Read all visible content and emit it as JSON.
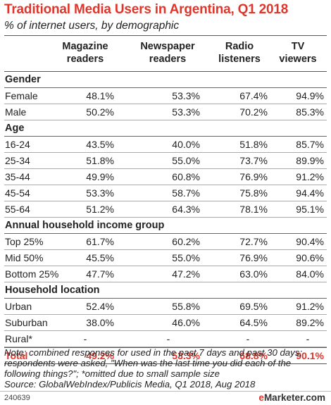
{
  "chart_data": {
    "type": "table",
    "title": "Traditional Media Users in Argentina, Q1 2018",
    "subtitle": "% of internet users, by demographic",
    "columns": [
      "Magazine readers",
      "Newspaper readers",
      "Radio listeners",
      "TV viewers"
    ],
    "sections": [
      {
        "name": "Gender",
        "rows": [
          {
            "label": "Female",
            "values": [
              "48.1%",
              "53.3%",
              "67.4%",
              "94.9%"
            ]
          },
          {
            "label": "Male",
            "values": [
              "50.2%",
              "53.3%",
              "70.2%",
              "85.3%"
            ]
          }
        ]
      },
      {
        "name": "Age",
        "rows": [
          {
            "label": "16-24",
            "values": [
              "43.5%",
              "40.0%",
              "51.8%",
              "85.7%"
            ]
          },
          {
            "label": "25-34",
            "values": [
              "51.8%",
              "55.0%",
              "73.7%",
              "89.9%"
            ]
          },
          {
            "label": "35-44",
            "values": [
              "49.9%",
              "60.8%",
              "76.9%",
              "91.2%"
            ]
          },
          {
            "label": "45-54",
            "values": [
              "53.3%",
              "58.7%",
              "75.8%",
              "94.4%"
            ]
          },
          {
            "label": "55-64",
            "values": [
              "51.2%",
              "64.3%",
              "78.1%",
              "95.1%"
            ]
          }
        ]
      },
      {
        "name": "Annual household income group",
        "rows": [
          {
            "label": "Top 25%",
            "values": [
              "61.7%",
              "60.2%",
              "72.7%",
              "90.4%"
            ]
          },
          {
            "label": "Mid 50%",
            "values": [
              "45.5%",
              "55.0%",
              "76.9%",
              "90.6%"
            ]
          },
          {
            "label": "Bottom 25%",
            "values": [
              "47.7%",
              "47.2%",
              "63.0%",
              "84.0%"
            ]
          }
        ]
      },
      {
        "name": "Household location",
        "rows": [
          {
            "label": "Urban",
            "values": [
              "52.4%",
              "55.8%",
              "69.5%",
              "91.2%"
            ]
          },
          {
            "label": "Suburban",
            "values": [
              "38.0%",
              "46.0%",
              "64.5%",
              "89.2%"
            ]
          },
          {
            "label": "Rural*",
            "values": [
              "-",
              "-",
              "-",
              "-"
            ]
          }
        ]
      }
    ],
    "total": {
      "label": "Total",
      "values": [
        "49.2%",
        "53.3%",
        "68.8%",
        "90.1%"
      ]
    }
  },
  "note": "Note: combined responses for used in the past 7 days and past 30 days; respondents were asked, \"When was the last time you did each of the following things?\"; *omitted due to small sample size",
  "source": "Source: GlobalWebIndex/Publicis Media, Q1 2018, Aug 2018",
  "footer": {
    "id": "240639",
    "brand_e": "e",
    "brand_rest": "Marketer",
    "brand_suffix": ".com"
  },
  "colors": {
    "accent": "#e0352b"
  }
}
